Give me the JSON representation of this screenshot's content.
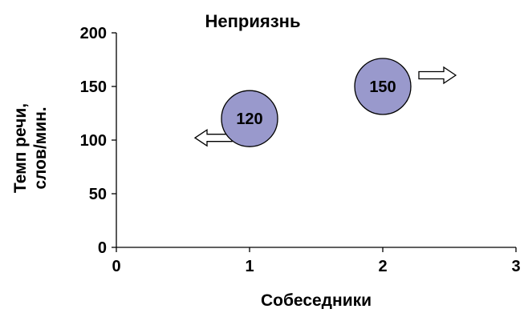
{
  "chart_data": {
    "type": "scatter",
    "title": "Неприязнь",
    "xlabel": "Собеседники",
    "ylabel_lines": [
      "Темп речи,",
      "слов/мин."
    ],
    "xlim": [
      0,
      3
    ],
    "ylim": [
      0,
      200
    ],
    "x_ticks": [
      0,
      1,
      2,
      3
    ],
    "y_ticks": [
      0,
      50,
      100,
      150,
      200
    ],
    "grid": false,
    "legend": "none",
    "colors": {
      "bubble_fill": "#9999cc",
      "bubble_stroke": "#000000",
      "arrow_fill": "#ffffff",
      "arrow_stroke": "#000000"
    },
    "points": [
      {
        "x": 1,
        "y": 120,
        "label": "120",
        "arrow": "left"
      },
      {
        "x": 2,
        "y": 150,
        "label": "150",
        "arrow": "right"
      }
    ]
  }
}
